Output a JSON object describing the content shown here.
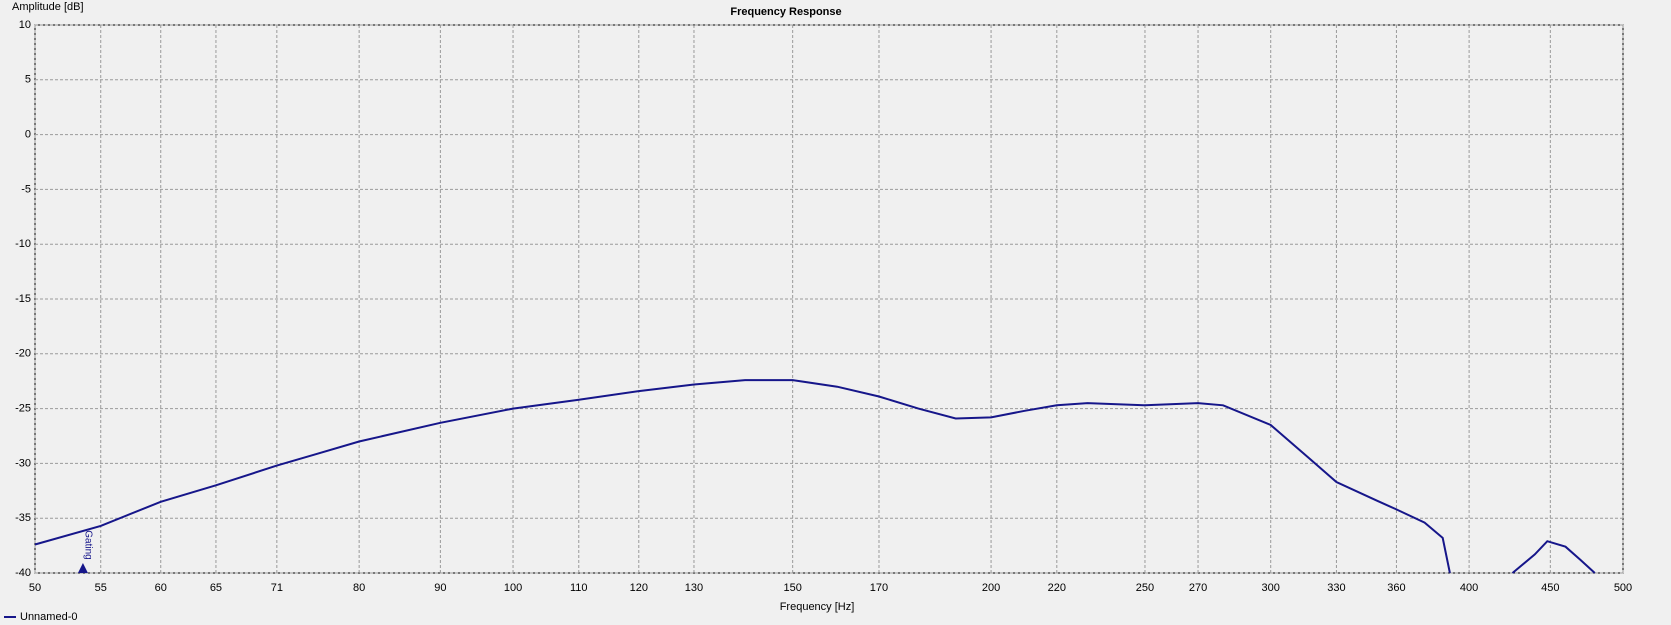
{
  "chart_data": {
    "type": "line",
    "title": "Frequency Response",
    "y_label": "Amplitude [dB]",
    "x_label": "Frequency [Hz]",
    "x_scale": "log",
    "grid": true,
    "xlim": [
      50,
      500
    ],
    "xticks": [
      50,
      55,
      60,
      65,
      71,
      80,
      90,
      100,
      110,
      120,
      130,
      150,
      170,
      200,
      220,
      250,
      270,
      300,
      330,
      360,
      400,
      450,
      500
    ],
    "ylim": [
      -40,
      10
    ],
    "yticks": [
      10,
      5,
      0,
      -5,
      -10,
      -15,
      -20,
      -25,
      -30,
      -35,
      -40
    ],
    "annotation": {
      "text": "Gating",
      "x": 53.6
    },
    "x": [
      50,
      55,
      60,
      65,
      71,
      75,
      80,
      90,
      100,
      110,
      120,
      130,
      140,
      150,
      160,
      170,
      180,
      190,
      200,
      210,
      220,
      230,
      250,
      270,
      280,
      300,
      317,
      330,
      350,
      360,
      375,
      385,
      389,
      410,
      426,
      440,
      448,
      460,
      470,
      480
    ],
    "series": [
      {
        "name": "Unnamed-0",
        "color": "#16168a",
        "values": [
          -37.4,
          -35.7,
          -33.5,
          -32.0,
          -30.2,
          -29.2,
          -28.0,
          -26.3,
          -25.0,
          -24.2,
          -23.4,
          -22.8,
          -22.4,
          -22.4,
          -23.0,
          -23.9,
          -25.0,
          -25.9,
          -25.8,
          -25.2,
          -24.7,
          -24.5,
          -24.7,
          -24.5,
          -24.7,
          -26.5,
          -29.5,
          -31.7,
          -33.4,
          -34.2,
          -35.4,
          -36.8,
          -40,
          null,
          -40,
          -38.3,
          -37.1,
          -37.6,
          -38.8,
          -40
        ]
      }
    ]
  }
}
